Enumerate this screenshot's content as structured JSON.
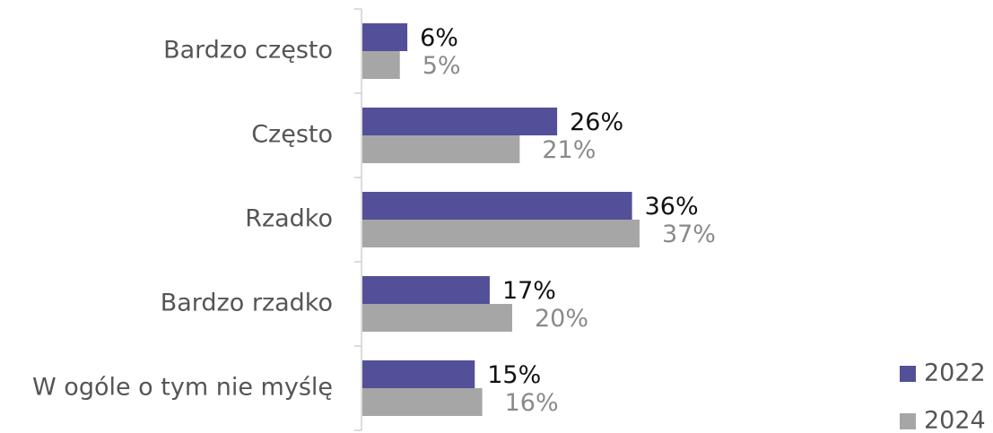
{
  "chart_data": {
    "type": "hbar",
    "categories": [
      "Bardzo często",
      "Często",
      "Rzadko",
      "Bardzo rzadko",
      "W ogóle o tym nie myślę"
    ],
    "series": [
      {
        "name": "2022",
        "color": "#534f98",
        "values": [
          6,
          26,
          36,
          17,
          15
        ],
        "value_labels": [
          "6%",
          "26%",
          "36%",
          "17%",
          "15%"
        ]
      },
      {
        "name": "2024",
        "color": "#a6a6a6",
        "values": [
          5,
          21,
          37,
          20,
          16
        ],
        "value_labels": [
          "5%",
          "21%",
          "37%",
          "20%",
          "16%"
        ]
      }
    ],
    "legend": "lower right"
  }
}
